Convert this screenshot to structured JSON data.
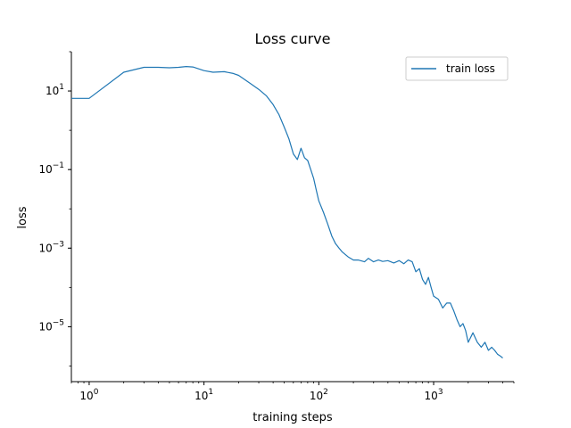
{
  "chart_data": {
    "type": "line",
    "title": "Loss curve",
    "xlabel": "training steps",
    "ylabel": "loss",
    "x_scale": "log",
    "y_scale": "log",
    "xlim": [
      0.7,
      5000
    ],
    "ylim": [
      4e-07,
      100
    ],
    "grid": false,
    "legend_position": "top-right",
    "x_ticks": [
      {
        "value": 1,
        "base": "10",
        "exp": "0"
      },
      {
        "value": 10,
        "base": "10",
        "exp": "1"
      },
      {
        "value": 100,
        "base": "10",
        "exp": "2"
      },
      {
        "value": 1000,
        "base": "10",
        "exp": "3"
      }
    ],
    "y_ticks": [
      {
        "value": 10,
        "base": "10",
        "exp": "1"
      },
      {
        "value": 0.1,
        "base": "10",
        "exp": "−1"
      },
      {
        "value": 0.001,
        "base": "10",
        "exp": "−3"
      },
      {
        "value": 1e-05,
        "base": "10",
        "exp": "−5"
      }
    ],
    "series": [
      {
        "name": "train loss",
        "color": "#1f77b4",
        "x": [
          0.7,
          1,
          2,
          3,
          4,
          5,
          6,
          7,
          8,
          10,
          12,
          15,
          18,
          20,
          25,
          30,
          35,
          40,
          45,
          50,
          55,
          60,
          65,
          70,
          75,
          80,
          85,
          90,
          95,
          100,
          110,
          120,
          130,
          140,
          150,
          160,
          180,
          200,
          220,
          250,
          270,
          300,
          330,
          360,
          400,
          450,
          500,
          550,
          600,
          650,
          700,
          750,
          800,
          850,
          900,
          950,
          1000,
          1100,
          1200,
          1300,
          1400,
          1500,
          1600,
          1700,
          1800,
          1900,
          2000,
          2200,
          2400,
          2600,
          2800,
          3000,
          3200,
          3400,
          3600,
          3800,
          4000
        ],
        "y": [
          6.5,
          6.5,
          30,
          40,
          40,
          39,
          40,
          42,
          41,
          33,
          30,
          31,
          28,
          25,
          16,
          11,
          7.5,
          4.5,
          2.5,
          1.2,
          0.6,
          0.25,
          0.18,
          0.35,
          0.2,
          0.17,
          0.1,
          0.06,
          0.03,
          0.016,
          0.008,
          0.004,
          0.002,
          0.0013,
          0.001,
          0.0008,
          0.0006,
          0.0005,
          0.0005,
          0.00045,
          0.00055,
          0.00045,
          0.0005,
          0.00046,
          0.00048,
          0.00042,
          0.00048,
          0.0004,
          0.0005,
          0.00045,
          0.00025,
          0.0003,
          0.00016,
          0.00012,
          0.00018,
          0.0001,
          6e-05,
          5e-05,
          3e-05,
          4e-05,
          4e-05,
          2.5e-05,
          1.5e-05,
          1e-05,
          1.2e-05,
          8e-06,
          4e-06,
          7e-06,
          4e-06,
          3e-06,
          4e-06,
          2.5e-06,
          3e-06,
          2.5e-06,
          2e-06,
          1.8e-06,
          1.6e-06
        ]
      }
    ]
  }
}
